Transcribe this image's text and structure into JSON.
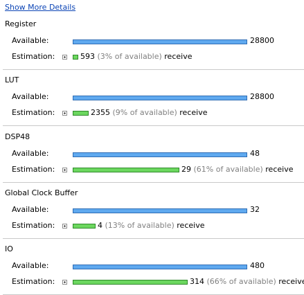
{
  "show_more_link": "Show More Details",
  "labels": {
    "available": "Available:",
    "estimation": "Estimation:"
  },
  "sections": [
    {
      "title": "Register",
      "available": "28800",
      "estimate": "593",
      "percent_text": "(3% of available)",
      "action": "receive",
      "fraction": 0.03
    },
    {
      "title": "LUT",
      "available": "28800",
      "estimate": "2355",
      "percent_text": "(9% of available)",
      "action": "receive",
      "fraction": 0.09
    },
    {
      "title": "DSP48",
      "available": "48",
      "estimate": "29",
      "percent_text": "(61% of available)",
      "action": "receive",
      "fraction": 0.61
    },
    {
      "title": "Global Clock Buffer",
      "available": "32",
      "estimate": "4",
      "percent_text": "(13% of available)",
      "action": "receive",
      "fraction": 0.13
    },
    {
      "title": "IO",
      "available": "480",
      "estimate": "314",
      "percent_text": "(66% of available)",
      "action": "receive",
      "fraction": 0.66
    }
  ]
}
